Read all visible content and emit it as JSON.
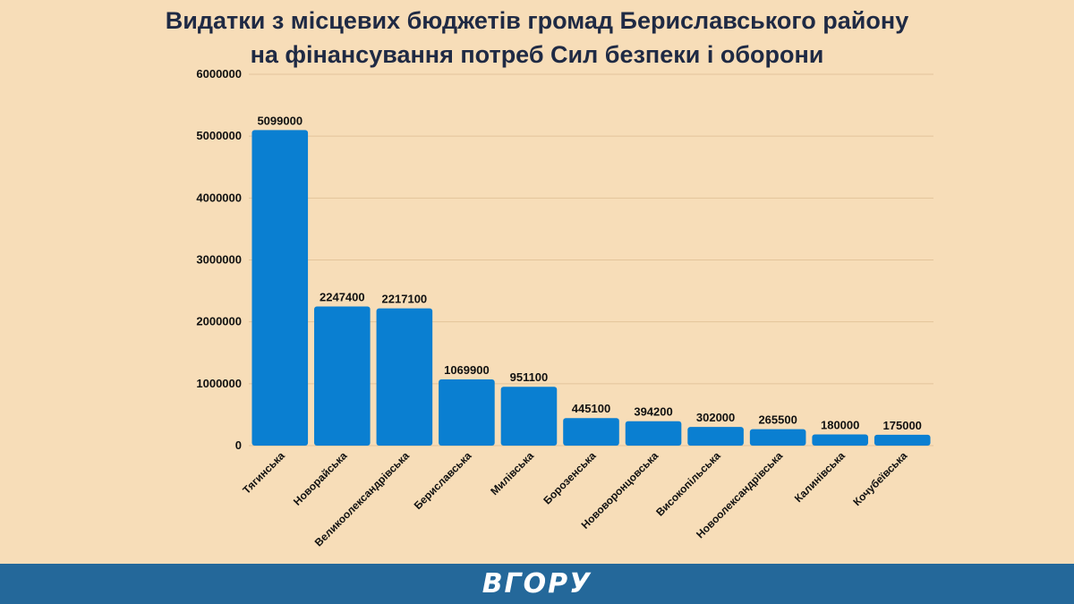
{
  "chart_data": {
    "type": "bar",
    "title_line1": "Видатки з місцевих бюджетів громад Бериславського району",
    "title_line2": "на фінансування потреб Сил безпеки і оборони",
    "xlabel": "",
    "ylabel": "",
    "ylim": [
      0,
      6000000
    ],
    "yticks": [
      "0",
      "1000000",
      "2000000",
      "3000000",
      "4000000",
      "5000000",
      "6000000"
    ],
    "grid": true,
    "categories": [
      "Тягинська",
      "Новорайська",
      "Великоолександрівська",
      "Бериславська",
      "Милівська",
      "Борозенська",
      "Нововоронцовська",
      "Високопільська",
      "Новоолександрівська",
      "Калинівська",
      "Кочубеївська"
    ],
    "values": [
      5099000,
      2247400,
      2217100,
      1069900,
      951100,
      445100,
      394200,
      302000,
      265500,
      180000,
      175000
    ],
    "bar_color": "#0a7fd1"
  },
  "footer": {
    "logo": "ВГОРУ",
    "background": "#24689a"
  }
}
